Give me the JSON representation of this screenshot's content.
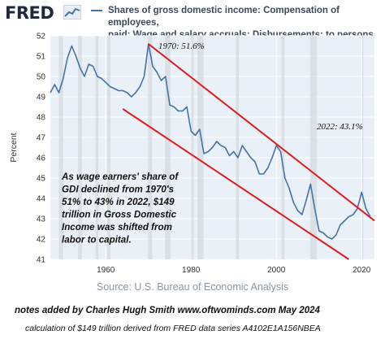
{
  "header": {
    "logo_text": "FRED",
    "legend_line1": "Shares of gross domestic income: Compensation of employees,",
    "legend_line2": "paid: Wage and salary accruals: Disbursements: to persons"
  },
  "source": "Source: U.S. Bureau of Economic Analysis",
  "notes": {
    "line1": "notes added by Charles Hugh Smith www.oftwominds.com  May 2024",
    "line2": "calculation of $149 trillion derived from FRED data series A4102E1A156NBEA"
  },
  "annotations": {
    "peak_label": "1970: 51.6%",
    "end_label": "2022: 43.1%",
    "body_lines": [
      "As wage earners' share of",
      "GDI declined from 1970's",
      "51% to 43% in 2022, $149",
      "trillion in Gross Domestic",
      "Income was shifted from",
      "labor to capital."
    ]
  },
  "colors": {
    "series": "#4572a7",
    "trend_lines": "#e01b1b",
    "plot_background": "#eaf0f8"
  },
  "chart_data": {
    "type": "line",
    "ylabel": "Percent",
    "xlim": [
      1947,
      2023
    ],
    "ylim": [
      41,
      52
    ],
    "yticks": [
      41,
      42,
      43,
      44,
      45,
      46,
      47,
      48,
      49,
      50,
      51,
      52
    ],
    "xticks": [
      1960,
      1980,
      2000,
      2020
    ],
    "grid": "horizontal",
    "series": [
      {
        "name": "Shares of gross domestic income: Compensation of employees, paid: Wage and salary accruals: Disbursements: to persons",
        "x": [
          1947,
          1948,
          1949,
          1950,
          1951,
          1952,
          1953,
          1954,
          1955,
          1956,
          1957,
          1958,
          1959,
          1960,
          1961,
          1962,
          1963,
          1964,
          1965,
          1966,
          1967,
          1968,
          1969,
          1970,
          1971,
          1972,
          1973,
          1974,
          1975,
          1976,
          1977,
          1978,
          1979,
          1980,
          1981,
          1982,
          1983,
          1984,
          1985,
          1986,
          1987,
          1988,
          1989,
          1990,
          1991,
          1992,
          1993,
          1994,
          1995,
          1996,
          1997,
          1998,
          1999,
          2000,
          2001,
          2002,
          2003,
          2004,
          2005,
          2006,
          2007,
          2008,
          2009,
          2010,
          2011,
          2012,
          2013,
          2014,
          2015,
          2016,
          2017,
          2018,
          2019,
          2020,
          2021,
          2022
        ],
        "values": [
          49.2,
          49.6,
          49.2,
          49.9,
          50.9,
          51.5,
          51.0,
          50.4,
          50.0,
          50.6,
          50.5,
          50.0,
          49.9,
          49.7,
          49.5,
          49.4,
          49.3,
          49.3,
          49.2,
          49.0,
          49.2,
          49.5,
          50.0,
          51.6,
          50.5,
          50.2,
          49.8,
          50.0,
          48.6,
          48.5,
          48.3,
          48.3,
          48.5,
          47.3,
          47.1,
          47.4,
          46.2,
          46.3,
          46.5,
          46.8,
          46.6,
          46.5,
          46.1,
          46.3,
          46.0,
          46.6,
          46.3,
          46.0,
          45.8,
          45.2,
          45.2,
          45.5,
          46.0,
          46.6,
          46.3,
          45.0,
          44.5,
          43.8,
          43.4,
          43.2,
          43.9,
          44.7,
          43.5,
          42.4,
          42.3,
          42.1,
          42.0,
          42.2,
          42.7,
          42.9,
          43.1,
          43.2,
          43.5,
          44.3,
          43.5,
          43.1
        ]
      }
    ],
    "trend_lines": [
      {
        "from": [
          1970,
          51.6
        ],
        "to": [
          2023,
          42.9
        ]
      },
      {
        "from": [
          1964,
          48.4
        ],
        "to": [
          2017,
          41.0
        ]
      }
    ]
  }
}
